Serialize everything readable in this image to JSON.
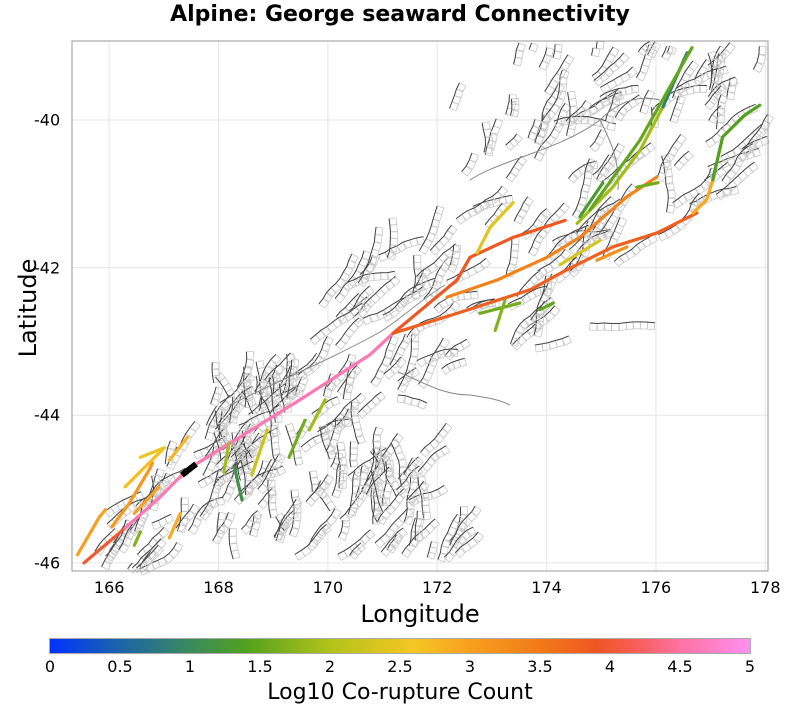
{
  "title": "Alpine: George seaward Connectivity",
  "chart_data": {
    "type": "map",
    "title": "Alpine: George seaward Connectivity",
    "xlabel": "Longitude",
    "ylabel": "Latitude",
    "xlim": [
      165.32,
      178.05
    ],
    "ylim": [
      -46.11,
      -38.93
    ],
    "x_ticks": [
      "166",
      "168",
      "170",
      "172",
      "174",
      "176",
      "178"
    ],
    "x_tick_values": [
      166,
      168,
      170,
      172,
      174,
      176,
      178
    ],
    "y_ticks": [
      "-40",
      "-42",
      "-44",
      "-46"
    ],
    "y_tick_values": [
      -40,
      -42,
      -44,
      -46
    ],
    "grid": true,
    "colorbar": {
      "label": "Log10 Co-rupture Count",
      "range": [
        0,
        5
      ],
      "ticks": [
        "0",
        "0.5",
        "1",
        "1.5",
        "2",
        "2.5",
        "3",
        "3.5",
        "4",
        "4.5",
        "5"
      ],
      "tick_values": [
        0,
        0.5,
        1,
        1.5,
        2,
        2.5,
        3,
        3.5,
        4,
        4.5,
        5
      ],
      "stops": [
        [
          0,
          "#0033ff"
        ],
        [
          0.5,
          "#1c65a8"
        ],
        [
          1,
          "#3a8a5c"
        ],
        [
          1.4,
          "#52a11e"
        ],
        [
          2,
          "#b2c31a"
        ],
        [
          2.6,
          "#f6c624"
        ],
        [
          3,
          "#f8a020"
        ],
        [
          3.5,
          "#f27a18"
        ],
        [
          3.9,
          "#ee5622"
        ],
        [
          4.2,
          "#f85e5a"
        ],
        [
          4.5,
          "#ff72a2"
        ],
        [
          5,
          "#ff90f0"
        ]
      ]
    },
    "source_fault": {
      "points": [
        [
          167.33,
          -44.81
        ],
        [
          167.59,
          -44.66
        ]
      ],
      "color": "#000000"
    },
    "co_ruptures": [
      {
        "value": 4.0,
        "points": [
          [
            165.54,
            -46.0
          ],
          [
            166.29,
            -45.53
          ]
        ]
      },
      {
        "value": 4.6,
        "points": [
          [
            166.29,
            -45.53
          ],
          [
            166.93,
            -45.11
          ],
          [
            167.33,
            -44.81
          ]
        ]
      },
      {
        "value": 4.6,
        "points": [
          [
            167.59,
            -44.66
          ],
          [
            168.21,
            -44.38
          ],
          [
            169.49,
            -43.79
          ],
          [
            170.77,
            -43.18
          ],
          [
            171.19,
            -42.89
          ]
        ]
      },
      {
        "value": 3.8,
        "points": [
          [
            171.19,
            -42.89
          ],
          [
            172.36,
            -42.62
          ],
          [
            173.7,
            -42.3
          ],
          [
            174.37,
            -42.03
          ],
          [
            175.21,
            -41.72
          ],
          [
            176.02,
            -41.53
          ],
          [
            176.75,
            -41.26
          ]
        ]
      },
      {
        "value": 3.9,
        "points": [
          [
            171.19,
            -42.89
          ],
          [
            172.36,
            -42.17
          ],
          [
            172.6,
            -41.86
          ],
          [
            173.39,
            -41.59
          ],
          [
            174.34,
            -41.36
          ]
        ]
      },
      {
        "value": 3.4,
        "points": [
          [
            172.18,
            -42.4
          ],
          [
            173.09,
            -42.17
          ],
          [
            174.01,
            -41.86
          ],
          [
            174.61,
            -41.59
          ],
          [
            175.47,
            -41.04
          ],
          [
            176.02,
            -40.77
          ]
        ]
      },
      {
        "value": 1.9,
        "points": [
          [
            174.56,
            -41.4
          ],
          [
            175.21,
            -40.91
          ],
          [
            175.71,
            -40.41
          ],
          [
            176.13,
            -39.82
          ]
        ]
      },
      {
        "value": 0.9,
        "points": [
          [
            176.13,
            -39.82
          ],
          [
            176.57,
            -39.09
          ]
        ]
      },
      {
        "value": 1.5,
        "points": [
          [
            174.79,
            -41.22
          ],
          [
            175.71,
            -40.27
          ],
          [
            176.66,
            -39.02
          ]
        ]
      },
      {
        "value": 1.3,
        "points": [
          [
            174.61,
            -41.31
          ],
          [
            175.03,
            -40.85
          ]
        ]
      },
      {
        "value": 2.9,
        "points": [
          [
            176.68,
            -41.26
          ],
          [
            176.93,
            -41.08
          ],
          [
            177.04,
            -40.81
          ]
        ]
      },
      {
        "value": 1.4,
        "points": [
          [
            177.04,
            -40.81
          ],
          [
            177.22,
            -40.23
          ],
          [
            177.63,
            -39.93
          ],
          [
            177.9,
            -39.8
          ]
        ]
      },
      {
        "value": 2.4,
        "points": [
          [
            172.73,
            -41.8
          ],
          [
            172.97,
            -41.45
          ],
          [
            173.39,
            -41.12
          ]
        ]
      },
      {
        "value": 1.6,
        "points": [
          [
            175.65,
            -40.91
          ],
          [
            176.04,
            -40.85
          ]
        ]
      },
      {
        "value": 3.2,
        "points": [
          [
            174.92,
            -41.9
          ],
          [
            175.47,
            -41.72
          ]
        ]
      },
      {
        "value": 1.5,
        "points": [
          [
            173.88,
            -42.57
          ],
          [
            174.12,
            -42.48
          ]
        ]
      },
      {
        "value": 1.6,
        "points": [
          [
            172.78,
            -42.62
          ],
          [
            173.51,
            -42.48
          ]
        ]
      },
      {
        "value": 2.3,
        "points": [
          [
            174.25,
            -41.96
          ],
          [
            174.98,
            -41.63
          ]
        ]
      },
      {
        "value": 1.7,
        "points": [
          [
            173.06,
            -42.85
          ],
          [
            173.24,
            -42.44
          ]
        ]
      },
      {
        "value": 3.0,
        "points": [
          [
            165.42,
            -45.89
          ],
          [
            165.82,
            -45.38
          ],
          [
            165.93,
            -45.28
          ]
        ]
      },
      {
        "value": 3.1,
        "points": [
          [
            166.05,
            -45.51
          ],
          [
            166.37,
            -45.19
          ],
          [
            166.73,
            -44.74
          ],
          [
            166.79,
            -44.65
          ]
        ]
      },
      {
        "value": 2.7,
        "points": [
          [
            166.29,
            -44.97
          ],
          [
            166.97,
            -44.47
          ]
        ]
      },
      {
        "value": 2.5,
        "points": [
          [
            166.57,
            -44.57
          ],
          [
            167.01,
            -44.44
          ]
        ]
      },
      {
        "value": 2.8,
        "points": [
          [
            167.1,
            -44.61
          ],
          [
            167.43,
            -44.3
          ]
        ]
      },
      {
        "value": 3.0,
        "points": [
          [
            166.46,
            -45.33
          ],
          [
            166.91,
            -44.97
          ]
        ]
      },
      {
        "value": 2.9,
        "points": [
          [
            167.1,
            -45.66
          ],
          [
            167.3,
            -45.33
          ]
        ]
      },
      {
        "value": 1.7,
        "points": [
          [
            166.46,
            -45.76
          ],
          [
            166.57,
            -45.58
          ]
        ]
      },
      {
        "value": 1.9,
        "points": [
          [
            168.1,
            -44.77
          ],
          [
            168.19,
            -44.38
          ]
        ]
      },
      {
        "value": 1.1,
        "points": [
          [
            168.29,
            -44.7
          ],
          [
            168.43,
            -45.15
          ]
        ]
      },
      {
        "value": 2.2,
        "points": [
          [
            168.61,
            -44.81
          ],
          [
            168.89,
            -44.2
          ]
        ]
      },
      {
        "value": 1.6,
        "points": [
          [
            169.29,
            -44.57
          ],
          [
            169.58,
            -44.07
          ]
        ]
      },
      {
        "value": 1.9,
        "points": [
          [
            169.66,
            -44.2
          ],
          [
            169.95,
            -43.79
          ]
        ]
      }
    ]
  }
}
